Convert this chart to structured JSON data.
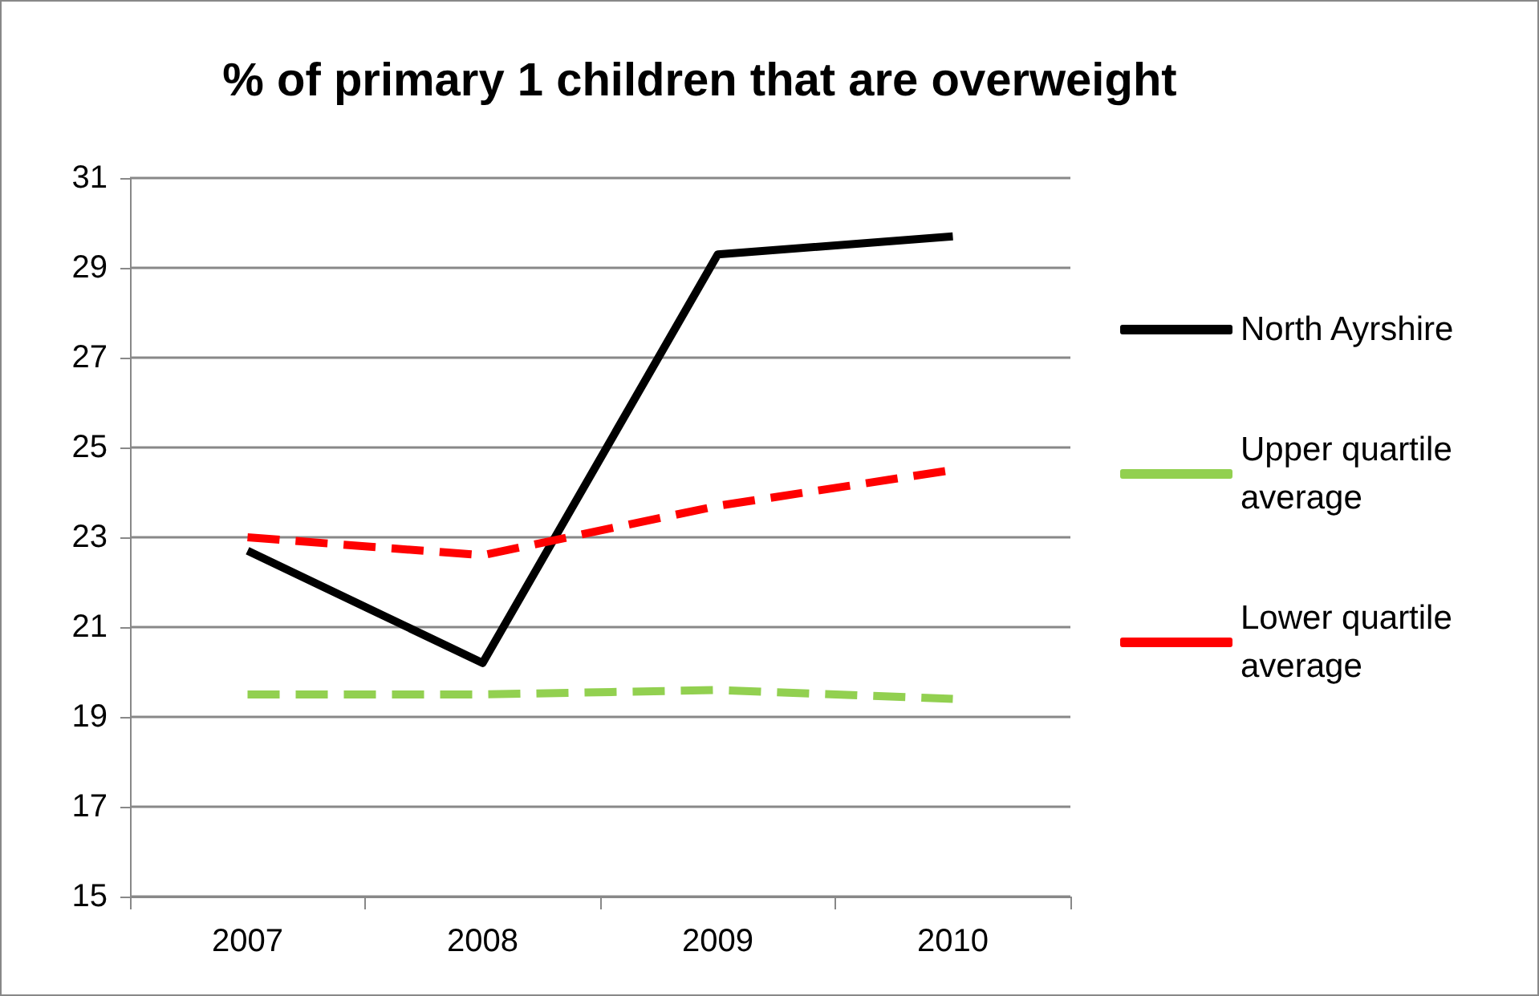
{
  "chart_data": {
    "type": "line",
    "title": "% of primary 1 children that are overweight",
    "categories": [
      "2007",
      "2008",
      "2009",
      "2010"
    ],
    "series": [
      {
        "name": "North Ayrshire",
        "color": "#000000",
        "line_style": "solid",
        "values": [
          22.7,
          20.2,
          29.3,
          29.7
        ]
      },
      {
        "name": "Upper quartile average",
        "color": "#92d050",
        "line_style": "dashed",
        "values": [
          19.5,
          19.5,
          19.6,
          19.4
        ]
      },
      {
        "name": "Lower quartile average",
        "color": "#ff0000",
        "line_style": "dashed",
        "values": [
          23.0,
          22.6,
          23.7,
          24.5
        ]
      }
    ],
    "ylim": [
      15,
      31
    ],
    "yticks": [
      15,
      17,
      19,
      21,
      23,
      25,
      27,
      29,
      31
    ],
    "grid": "y",
    "legend": "right",
    "marker": "none"
  }
}
